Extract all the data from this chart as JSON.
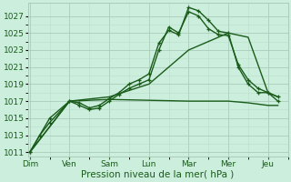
{
  "background_color": "#cceedd",
  "grid_major_color": "#aaccbb",
  "grid_minor_color": "#bbddcc",
  "line_color": "#1a5c1a",
  "marker_style": "+",
  "marker_size": 3.5,
  "line_width": 1.0,
  "xlabel": "Pression niveau de la mer( hPa )",
  "xlabel_fontsize": 7.5,
  "tick_label_color": "#1a5c1a",
  "tick_fontsize": 6.5,
  "ylim": [
    1010.5,
    1028.5
  ],
  "yticks": [
    1011,
    1013,
    1015,
    1017,
    1019,
    1021,
    1023,
    1025,
    1027
  ],
  "xtick_labels": [
    "Dim",
    "Ven",
    "Sam",
    "Lun",
    "Mar",
    "Mer",
    "Jeu"
  ],
  "xtick_positions": [
    0,
    1,
    2,
    3,
    4,
    5,
    6
  ],
  "xlim": [
    -0.05,
    6.5
  ],
  "series": [
    {
      "x": [
        0,
        0.25,
        0.5,
        1.0,
        1.25,
        1.5,
        1.75,
        2.0,
        2.25,
        2.5,
        2.75,
        3.0,
        3.25,
        3.5,
        3.75,
        4.0,
        4.25,
        4.5,
        4.75,
        5.0,
        5.25,
        5.5,
        5.75,
        6.0,
        6.25
      ],
      "y": [
        1011,
        1013,
        1015,
        1017,
        1016.8,
        1016.2,
        1016.5,
        1017.3,
        1018,
        1019,
        1019.5,
        1020.2,
        1023.8,
        1025.3,
        1024.8,
        1028.0,
        1027.6,
        1026.5,
        1025.2,
        1025.0,
        1021.0,
        1019.0,
        1018.0,
        1018.0,
        1017.0
      ],
      "has_markers": true
    },
    {
      "x": [
        0,
        0.25,
        0.5,
        1.0,
        1.25,
        1.5,
        1.75,
        2.0,
        2.25,
        2.5,
        2.75,
        3.0,
        3.25,
        3.5,
        3.75,
        4.0,
        4.25,
        4.5,
        4.75,
        5.0,
        5.25,
        5.5,
        5.75,
        6.0,
        6.25
      ],
      "y": [
        1011,
        1013,
        1014.5,
        1017,
        1016.5,
        1016.0,
        1016.2,
        1017.0,
        1017.8,
        1018.5,
        1019.0,
        1019.5,
        1023.0,
        1025.7,
        1025.0,
        1027.5,
        1027.0,
        1025.5,
        1024.8,
        1024.7,
        1021.3,
        1019.5,
        1018.5,
        1018.0,
        1017.5
      ],
      "has_markers": true
    },
    {
      "x": [
        0,
        1.0,
        2.0,
        3.0,
        4.0,
        4.5,
        5.0,
        5.5,
        6.0,
        6.25
      ],
      "y": [
        1011,
        1017,
        1017.2,
        1017.1,
        1017.0,
        1017.0,
        1017.0,
        1016.8,
        1016.5,
        1016.5
      ],
      "has_markers": false
    },
    {
      "x": [
        0,
        1.0,
        2.0,
        3.0,
        4.0,
        5.0,
        5.5,
        6.0,
        6.25
      ],
      "y": [
        1011,
        1017,
        1017.5,
        1019.0,
        1023.0,
        1025.0,
        1024.5,
        1018.0,
        1017.5
      ],
      "has_markers": false
    }
  ]
}
